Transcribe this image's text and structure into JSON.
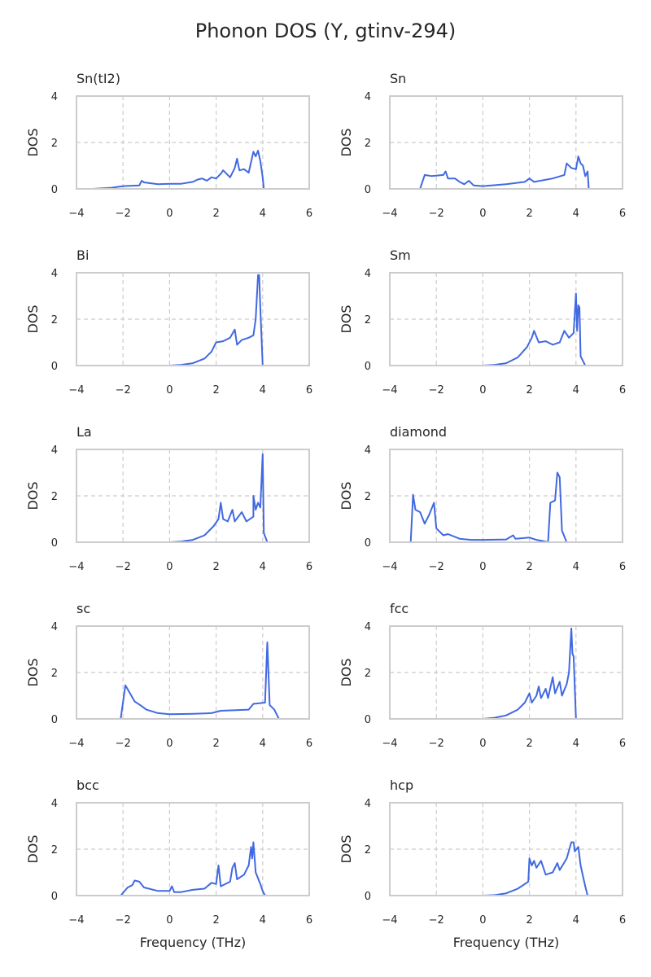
{
  "chart_data": {
    "type": "line",
    "title": "Phonon DOS (Y, gtinv-294)",
    "xlabel": "Frequency (THz)",
    "ylabel": "DOS",
    "xlim": [
      -4,
      6
    ],
    "ylim": [
      0,
      4
    ],
    "xticks": [
      "−4",
      "−2",
      "0",
      "2",
      "4",
      "6"
    ],
    "yticks": [
      "0",
      "2",
      "4"
    ],
    "grid": true,
    "line_color": "#4169e1",
    "panels": [
      {
        "title": "Sn(tI2)",
        "faint": [
          -3.3,
          4.8
        ],
        "points": [
          [
            -3.3,
            0
          ],
          [
            -2.5,
            0.05
          ],
          [
            -2,
            0.12
          ],
          [
            -1.3,
            0.15
          ],
          [
            -1.2,
            0.35
          ],
          [
            -1.1,
            0.28
          ],
          [
            -0.5,
            0.2
          ],
          [
            0,
            0.22
          ],
          [
            0.5,
            0.22
          ],
          [
            1,
            0.3
          ],
          [
            1.2,
            0.4
          ],
          [
            1.4,
            0.45
          ],
          [
            1.6,
            0.35
          ],
          [
            1.8,
            0.5
          ],
          [
            2,
            0.45
          ],
          [
            2.2,
            0.65
          ],
          [
            2.3,
            0.8
          ],
          [
            2.5,
            0.6
          ],
          [
            2.6,
            0.5
          ],
          [
            2.8,
            0.9
          ],
          [
            2.9,
            1.3
          ],
          [
            3,
            0.8
          ],
          [
            3.2,
            0.85
          ],
          [
            3.4,
            0.7
          ],
          [
            3.6,
            1.6
          ],
          [
            3.7,
            1.4
          ],
          [
            3.8,
            1.65
          ],
          [
            3.9,
            1.2
          ],
          [
            4,
            0.5
          ],
          [
            4.05,
            0
          ]
        ]
      },
      {
        "title": "Sn",
        "faint": [
          -3.1,
          5.2
        ],
        "points": [
          [
            -3.1,
            0
          ],
          [
            -2.7,
            0
          ],
          [
            -2.5,
            0.6
          ],
          [
            -2.2,
            0.55
          ],
          [
            -1.7,
            0.6
          ],
          [
            -1.6,
            0.75
          ],
          [
            -1.5,
            0.45
          ],
          [
            -1.2,
            0.45
          ],
          [
            -1,
            0.3
          ],
          [
            -0.8,
            0.2
          ],
          [
            -0.6,
            0.35
          ],
          [
            -0.4,
            0.15
          ],
          [
            0,
            0.12
          ],
          [
            1,
            0.2
          ],
          [
            1.8,
            0.3
          ],
          [
            2,
            0.45
          ],
          [
            2.2,
            0.3
          ],
          [
            3,
            0.45
          ],
          [
            3.5,
            0.6
          ],
          [
            3.6,
            1.1
          ],
          [
            3.8,
            0.9
          ],
          [
            4,
            0.85
          ],
          [
            4.1,
            1.4
          ],
          [
            4.2,
            1.1
          ],
          [
            4.3,
            1
          ],
          [
            4.4,
            0.55
          ],
          [
            4.5,
            0.75
          ],
          [
            4.55,
            0
          ]
        ]
      },
      {
        "title": "Bi",
        "faint": [
          0,
          4.4
        ],
        "points": [
          [
            0,
            0
          ],
          [
            0.5,
            0.03
          ],
          [
            1,
            0.1
          ],
          [
            1.5,
            0.3
          ],
          [
            1.8,
            0.6
          ],
          [
            2,
            1
          ],
          [
            2.3,
            1.05
          ],
          [
            2.6,
            1.2
          ],
          [
            2.8,
            1.55
          ],
          [
            2.9,
            0.9
          ],
          [
            3.1,
            1.1
          ],
          [
            3.4,
            1.2
          ],
          [
            3.6,
            1.3
          ],
          [
            3.7,
            2
          ],
          [
            3.8,
            3.9
          ],
          [
            3.85,
            3.9
          ],
          [
            3.9,
            2.5
          ],
          [
            4,
            0
          ]
        ]
      },
      {
        "title": "Sm",
        "faint": [
          0,
          4.6
        ],
        "points": [
          [
            0,
            0
          ],
          [
            0.5,
            0.03
          ],
          [
            1,
            0.1
          ],
          [
            1.5,
            0.35
          ],
          [
            1.9,
            0.8
          ],
          [
            2.1,
            1.2
          ],
          [
            2.2,
            1.5
          ],
          [
            2.4,
            1
          ],
          [
            2.7,
            1.05
          ],
          [
            3,
            0.9
          ],
          [
            3.3,
            1
          ],
          [
            3.5,
            1.5
          ],
          [
            3.7,
            1.2
          ],
          [
            3.9,
            1.4
          ],
          [
            4,
            3.1
          ],
          [
            4.05,
            1.5
          ],
          [
            4.1,
            2.6
          ],
          [
            4.15,
            2.5
          ],
          [
            4.2,
            0.4
          ],
          [
            4.4,
            0
          ]
        ]
      },
      {
        "title": "La",
        "faint": [
          0,
          4.5
        ],
        "points": [
          [
            0,
            0
          ],
          [
            0.5,
            0.03
          ],
          [
            1,
            0.1
          ],
          [
            1.5,
            0.3
          ],
          [
            1.9,
            0.7
          ],
          [
            2.1,
            1
          ],
          [
            2.2,
            1.7
          ],
          [
            2.3,
            1
          ],
          [
            2.5,
            0.9
          ],
          [
            2.7,
            1.4
          ],
          [
            2.8,
            0.9
          ],
          [
            3.1,
            1.3
          ],
          [
            3.3,
            0.9
          ],
          [
            3.6,
            1.1
          ],
          [
            3.6,
            2
          ],
          [
            3.7,
            1.4
          ],
          [
            3.8,
            1.7
          ],
          [
            3.9,
            1.5
          ],
          [
            4,
            3.8
          ],
          [
            4.05,
            0.4
          ],
          [
            4.2,
            0
          ],
          [
            4.5,
            0
          ]
        ]
      },
      {
        "title": "diamond",
        "faint": [
          -3.8,
          4
        ],
        "points": [
          [
            -3.8,
            0
          ],
          [
            -3.1,
            0
          ],
          [
            -3,
            2.05
          ],
          [
            -2.9,
            1.4
          ],
          [
            -2.7,
            1.3
          ],
          [
            -2.5,
            0.8
          ],
          [
            -2.3,
            1.2
          ],
          [
            -2.1,
            1.7
          ],
          [
            -2,
            0.6
          ],
          [
            -1.7,
            0.3
          ],
          [
            -1.5,
            0.35
          ],
          [
            -1,
            0.15
          ],
          [
            -0.5,
            0.1
          ],
          [
            0,
            0.1
          ],
          [
            1,
            0.12
          ],
          [
            1.3,
            0.3
          ],
          [
            1.4,
            0.15
          ],
          [
            2,
            0.2
          ],
          [
            2.3,
            0.1
          ],
          [
            2.6,
            0.05
          ],
          [
            2.8,
            0
          ],
          [
            2.9,
            1.7
          ],
          [
            3.1,
            1.8
          ],
          [
            3.2,
            3
          ],
          [
            3.3,
            2.8
          ],
          [
            3.4,
            0.5
          ],
          [
            3.6,
            0
          ],
          [
            4,
            0
          ]
        ]
      },
      {
        "title": "sc",
        "faint": [
          -2.8,
          5.3
        ],
        "points": [
          [
            -2.8,
            0
          ],
          [
            -2.1,
            0
          ],
          [
            -1.9,
            1.45
          ],
          [
            -1.7,
            1.1
          ],
          [
            -1.5,
            0.75
          ],
          [
            -1.2,
            0.55
          ],
          [
            -1,
            0.4
          ],
          [
            -0.5,
            0.25
          ],
          [
            0,
            0.2
          ],
          [
            1,
            0.22
          ],
          [
            1.8,
            0.25
          ],
          [
            2.2,
            0.35
          ],
          [
            3.4,
            0.4
          ],
          [
            3.6,
            0.65
          ],
          [
            4.1,
            0.7
          ],
          [
            4.2,
            3.3
          ],
          [
            4.3,
            0.6
          ],
          [
            4.5,
            0.4
          ],
          [
            4.7,
            0
          ]
        ]
      },
      {
        "title": "fcc",
        "faint": [
          0,
          4.3
        ],
        "points": [
          [
            0,
            0
          ],
          [
            0.5,
            0.05
          ],
          [
            1,
            0.15
          ],
          [
            1.5,
            0.4
          ],
          [
            1.8,
            0.7
          ],
          [
            2,
            1.1
          ],
          [
            2.1,
            0.7
          ],
          [
            2.3,
            1
          ],
          [
            2.4,
            1.4
          ],
          [
            2.5,
            0.9
          ],
          [
            2.7,
            1.3
          ],
          [
            2.8,
            0.9
          ],
          [
            3,
            1.8
          ],
          [
            3.1,
            1.1
          ],
          [
            3.3,
            1.6
          ],
          [
            3.4,
            1
          ],
          [
            3.6,
            1.5
          ],
          [
            3.7,
            2
          ],
          [
            3.8,
            3.9
          ],
          [
            3.85,
            2.8
          ],
          [
            3.9,
            2.7
          ],
          [
            4,
            0
          ]
        ]
      },
      {
        "title": "bcc",
        "faint": [
          -2.8,
          4.7
        ],
        "points": [
          [
            -2.1,
            0
          ],
          [
            -1.8,
            0.35
          ],
          [
            -1.6,
            0.45
          ],
          [
            -1.5,
            0.65
          ],
          [
            -1.3,
            0.6
          ],
          [
            -1.1,
            0.35
          ],
          [
            -0.5,
            0.2
          ],
          [
            0,
            0.2
          ],
          [
            0.1,
            0.4
          ],
          [
            0.2,
            0.15
          ],
          [
            0.5,
            0.15
          ],
          [
            1,
            0.25
          ],
          [
            1.5,
            0.3
          ],
          [
            1.8,
            0.55
          ],
          [
            2,
            0.5
          ],
          [
            2.1,
            1.3
          ],
          [
            2.2,
            0.4
          ],
          [
            2.6,
            0.6
          ],
          [
            2.7,
            1.2
          ],
          [
            2.8,
            1.4
          ],
          [
            2.9,
            0.7
          ],
          [
            3.2,
            0.9
          ],
          [
            3.4,
            1.3
          ],
          [
            3.5,
            2.1
          ],
          [
            3.55,
            1.6
          ],
          [
            3.6,
            2.3
          ],
          [
            3.7,
            1
          ],
          [
            3.9,
            0.5
          ],
          [
            4,
            0.2
          ],
          [
            4.1,
            0
          ]
        ]
      },
      {
        "title": "hcp",
        "faint": [
          0,
          4.8
        ],
        "points": [
          [
            0,
            0
          ],
          [
            0.5,
            0.02
          ],
          [
            1,
            0.1
          ],
          [
            1.5,
            0.3
          ],
          [
            1.8,
            0.5
          ],
          [
            1.95,
            0.6
          ],
          [
            2,
            1.6
          ],
          [
            2.1,
            1.3
          ],
          [
            2.2,
            1.5
          ],
          [
            2.3,
            1.2
          ],
          [
            2.5,
            1.5
          ],
          [
            2.7,
            0.9
          ],
          [
            3,
            1
          ],
          [
            3.2,
            1.4
          ],
          [
            3.3,
            1.1
          ],
          [
            3.6,
            1.6
          ],
          [
            3.8,
            2.3
          ],
          [
            3.9,
            2.3
          ],
          [
            3.95,
            1.9
          ],
          [
            4.1,
            2.1
          ],
          [
            4.2,
            1.3
          ],
          [
            4.4,
            0.4
          ],
          [
            4.5,
            0
          ]
        ]
      }
    ]
  }
}
